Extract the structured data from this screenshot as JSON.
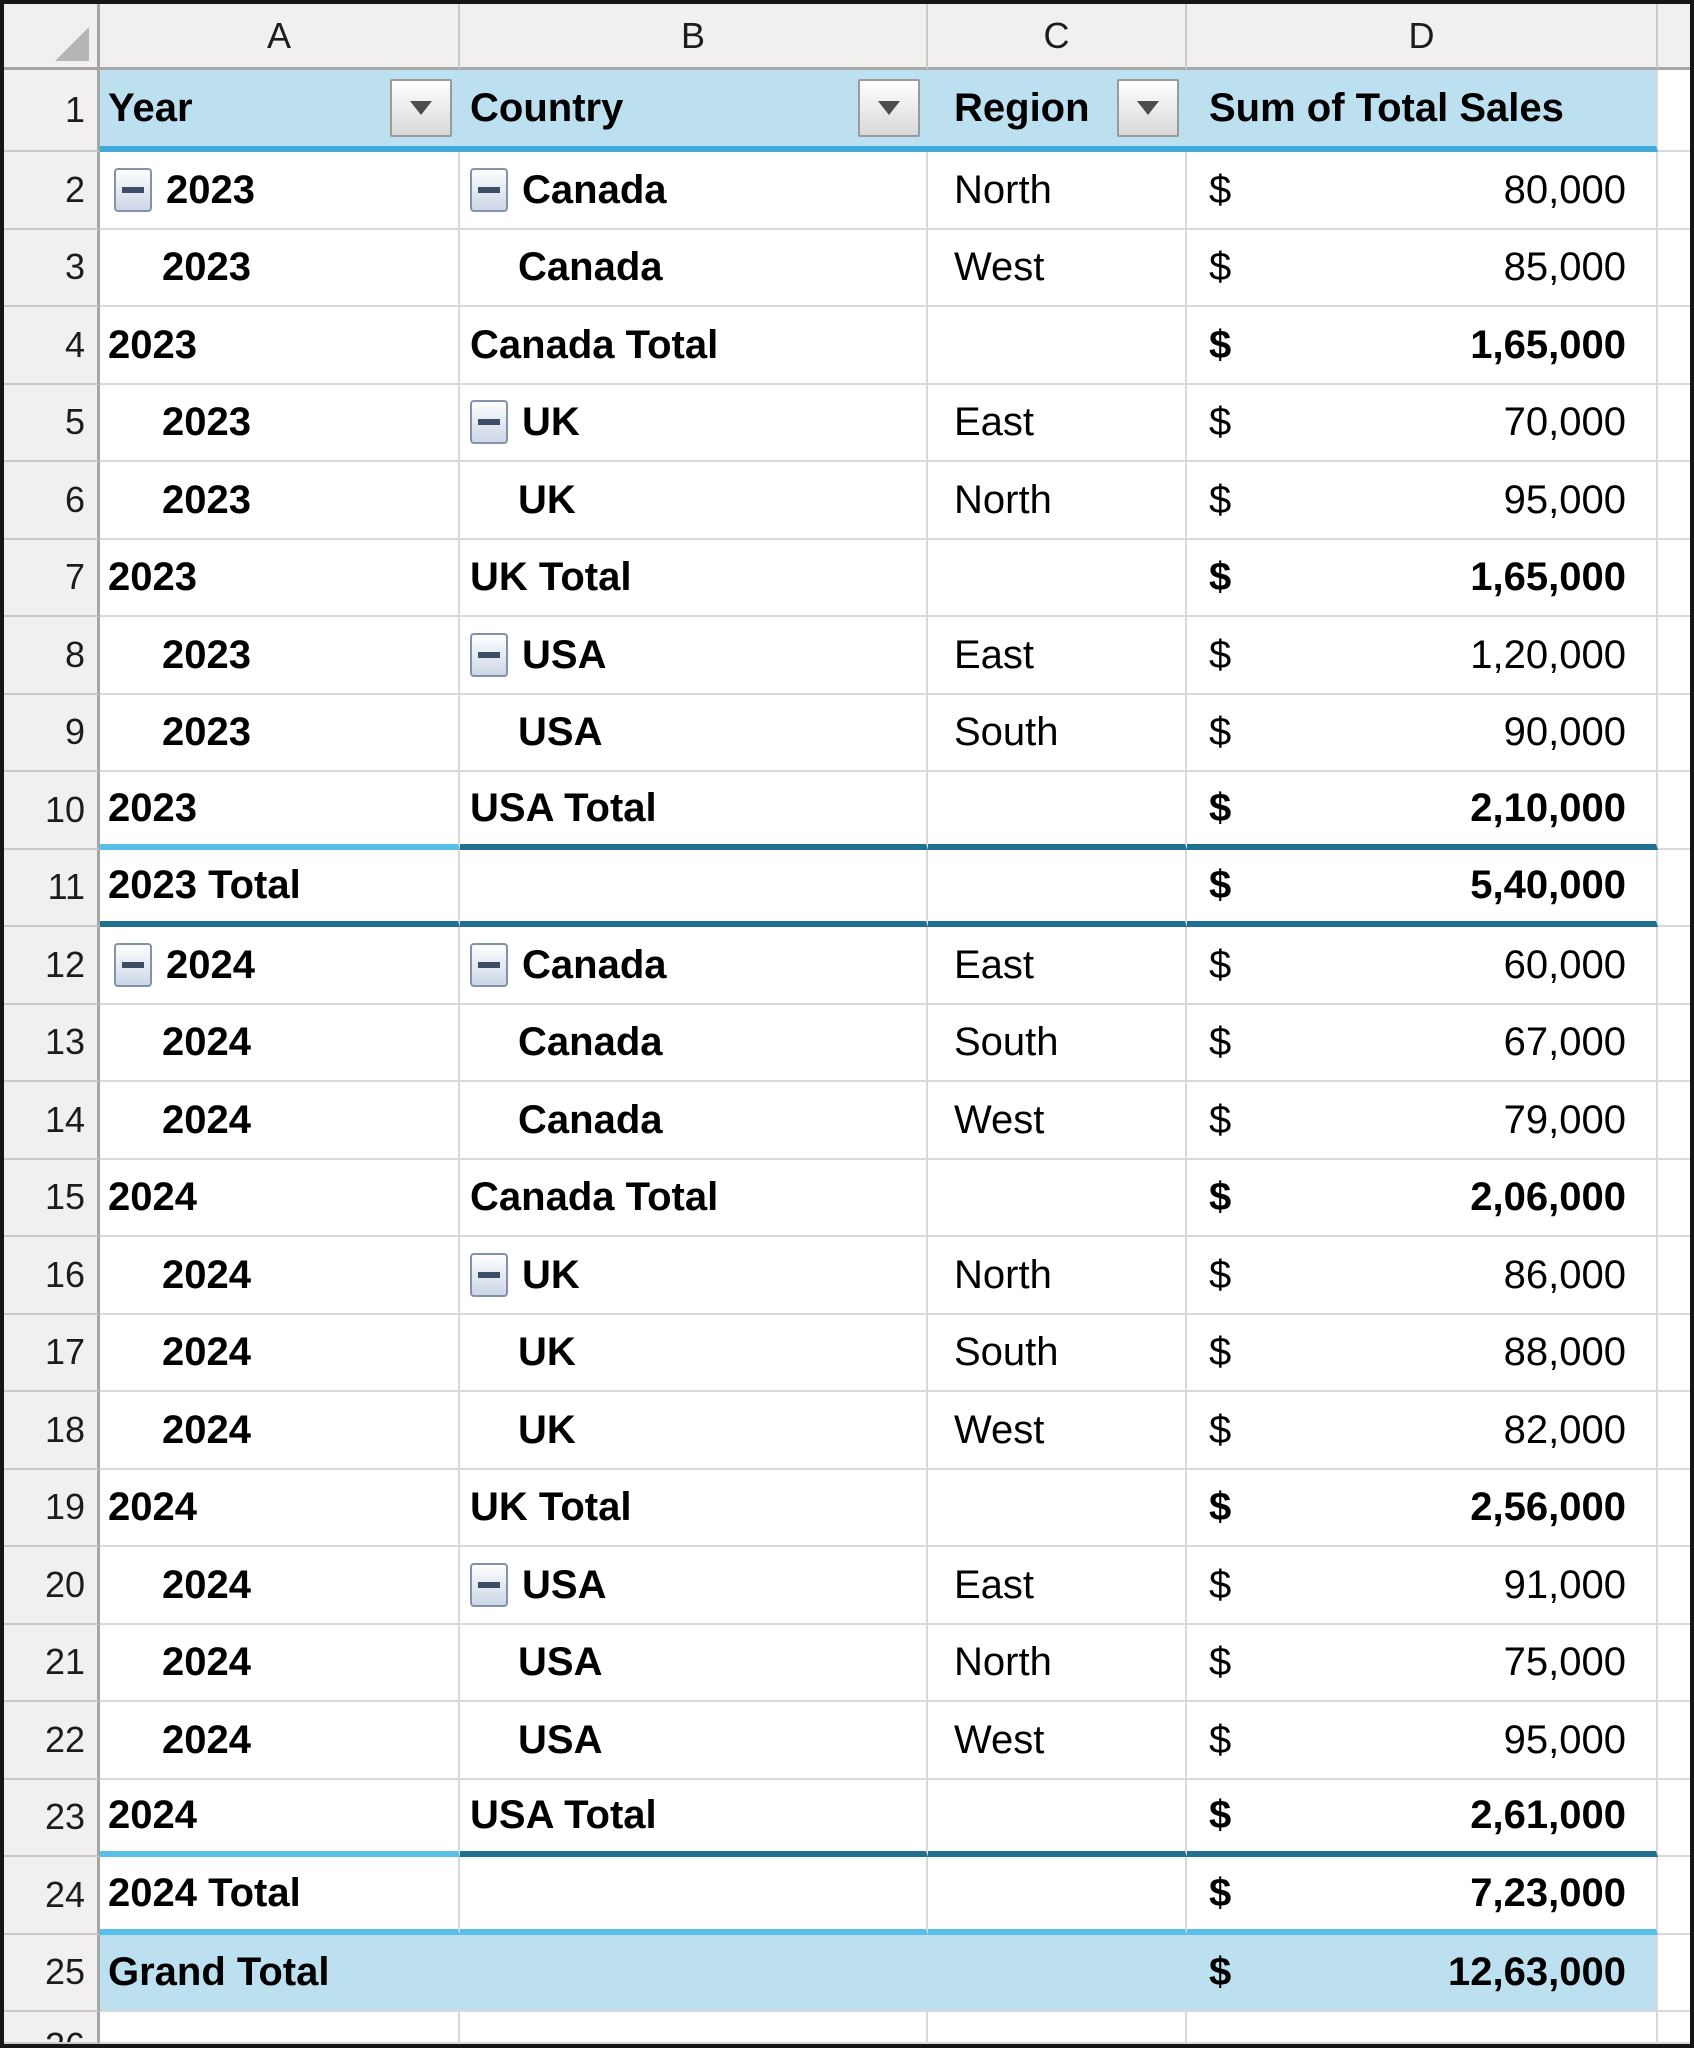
{
  "app": {
    "name": "spreadsheet-pivot-table"
  },
  "currency_symbol": "$",
  "column_headers": [
    "A",
    "B",
    "C",
    "D"
  ],
  "header_row": {
    "n": "1",
    "cells": [
      {
        "key": "year",
        "label": "Year",
        "filter": true
      },
      {
        "key": "country",
        "label": "Country",
        "filter": true
      },
      {
        "key": "region",
        "label": "Region",
        "filter": true
      },
      {
        "key": "values",
        "label": "Sum of Total Sales",
        "filter": false
      }
    ]
  },
  "rows": [
    {
      "n": "2",
      "a": {
        "t": "2023",
        "btn": true
      },
      "b": {
        "t": "Canada",
        "btn": true
      },
      "c": "North",
      "d": "80,000",
      "total": false,
      "bb": "",
      "grand": false
    },
    {
      "n": "3",
      "a": {
        "t": "2023",
        "ind": true
      },
      "b": {
        "t": "Canada",
        "ind": true
      },
      "c": "West",
      "d": "85,000",
      "total": false,
      "bb": "",
      "grand": false
    },
    {
      "n": "4",
      "a": {
        "t": "2023"
      },
      "b": {
        "t": "Canada Total"
      },
      "c": "",
      "d": "1,65,000",
      "total": true,
      "bb": "",
      "grand": false
    },
    {
      "n": "5",
      "a": {
        "t": "2023",
        "ind": true
      },
      "b": {
        "t": "UK",
        "btn": true
      },
      "c": "East",
      "d": "70,000",
      "total": false,
      "bb": "",
      "grand": false
    },
    {
      "n": "6",
      "a": {
        "t": "2023",
        "ind": true
      },
      "b": {
        "t": "UK",
        "ind": true
      },
      "c": "North",
      "d": "95,000",
      "total": false,
      "bb": "",
      "grand": false
    },
    {
      "n": "7",
      "a": {
        "t": "2023"
      },
      "b": {
        "t": "UK Total"
      },
      "c": "",
      "d": "1,65,000",
      "total": true,
      "bb": "",
      "grand": false
    },
    {
      "n": "8",
      "a": {
        "t": "2023",
        "ind": true
      },
      "b": {
        "t": "USA",
        "btn": true
      },
      "c": "East",
      "d": "1,20,000",
      "total": false,
      "bb": "",
      "grand": false
    },
    {
      "n": "9",
      "a": {
        "t": "2023",
        "ind": true
      },
      "b": {
        "t": "USA",
        "ind": true
      },
      "c": "South",
      "d": "90,000",
      "total": false,
      "bb": "",
      "grand": false
    },
    {
      "n": "10",
      "a": {
        "t": "2023"
      },
      "b": {
        "t": "USA Total"
      },
      "c": "",
      "d": "2,10,000",
      "total": true,
      "bb": "tb",
      "grand": false
    },
    {
      "n": "11",
      "a": {
        "t": "2023 Total"
      },
      "b": {
        "t": ""
      },
      "c": "",
      "d": "5,40,000",
      "total": true,
      "bb": "tf",
      "grand": false
    },
    {
      "n": "12",
      "a": {
        "t": "2024",
        "btn": true
      },
      "b": {
        "t": "Canada",
        "btn": true
      },
      "c": "East",
      "d": "60,000",
      "total": false,
      "bb": "",
      "grand": false
    },
    {
      "n": "13",
      "a": {
        "t": "2024",
        "ind": true
      },
      "b": {
        "t": "Canada",
        "ind": true
      },
      "c": "South",
      "d": "67,000",
      "total": false,
      "bb": "",
      "grand": false
    },
    {
      "n": "14",
      "a": {
        "t": "2024",
        "ind": true
      },
      "b": {
        "t": "Canada",
        "ind": true
      },
      "c": "West",
      "d": "79,000",
      "total": false,
      "bb": "",
      "grand": false
    },
    {
      "n": "15",
      "a": {
        "t": "2024"
      },
      "b": {
        "t": "Canada Total"
      },
      "c": "",
      "d": "2,06,000",
      "total": true,
      "bb": "",
      "grand": false
    },
    {
      "n": "16",
      "a": {
        "t": "2024",
        "ind": true
      },
      "b": {
        "t": "UK",
        "btn": true
      },
      "c": "North",
      "d": "86,000",
      "total": false,
      "bb": "",
      "grand": false
    },
    {
      "n": "17",
      "a": {
        "t": "2024",
        "ind": true
      },
      "b": {
        "t": "UK",
        "ind": true
      },
      "c": "South",
      "d": "88,000",
      "total": false,
      "bb": "",
      "grand": false
    },
    {
      "n": "18",
      "a": {
        "t": "2024",
        "ind": true
      },
      "b": {
        "t": "UK",
        "ind": true
      },
      "c": "West",
      "d": "82,000",
      "total": false,
      "bb": "",
      "grand": false
    },
    {
      "n": "19",
      "a": {
        "t": "2024"
      },
      "b": {
        "t": "UK Total"
      },
      "c": "",
      "d": "2,56,000",
      "total": true,
      "bb": "",
      "grand": false
    },
    {
      "n": "20",
      "a": {
        "t": "2024",
        "ind": true
      },
      "b": {
        "t": "USA",
        "btn": true
      },
      "c": "East",
      "d": "91,000",
      "total": false,
      "bb": "",
      "grand": false
    },
    {
      "n": "21",
      "a": {
        "t": "2024",
        "ind": true
      },
      "b": {
        "t": "USA",
        "ind": true
      },
      "c": "North",
      "d": "75,000",
      "total": false,
      "bb": "",
      "grand": false
    },
    {
      "n": "22",
      "a": {
        "t": "2024",
        "ind": true
      },
      "b": {
        "t": "USA",
        "ind": true
      },
      "c": "West",
      "d": "95,000",
      "total": false,
      "bb": "",
      "grand": false
    },
    {
      "n": "23",
      "a": {
        "t": "2024"
      },
      "b": {
        "t": "USA Total"
      },
      "c": "",
      "d": "2,61,000",
      "total": true,
      "bb": "tb",
      "grand": false
    },
    {
      "n": "24",
      "a": {
        "t": "2024 Total"
      },
      "b": {
        "t": ""
      },
      "c": "",
      "d": "7,23,000",
      "total": true,
      "bb": "lf",
      "grand": false
    },
    {
      "n": "25",
      "a": {
        "t": "Grand Total"
      },
      "b": {
        "t": ""
      },
      "c": "",
      "d": "12,63,000",
      "total": true,
      "bb": "",
      "grand": true
    }
  ],
  "next_row": {
    "n": "26"
  },
  "colors": {
    "header_bg": "#bde0f0",
    "header_underline": "#41a9dc",
    "subtotal_border_teal": "#20708f",
    "subtotal_border_blue": "#58bfe8",
    "gridline": "#d9d9d9",
    "gutter_bg": "#f1f0ef",
    "frame": "#161616"
  },
  "icons": {
    "filter": "dropdown-arrow",
    "collapse": "minus",
    "corner": "select-all-triangle"
  }
}
